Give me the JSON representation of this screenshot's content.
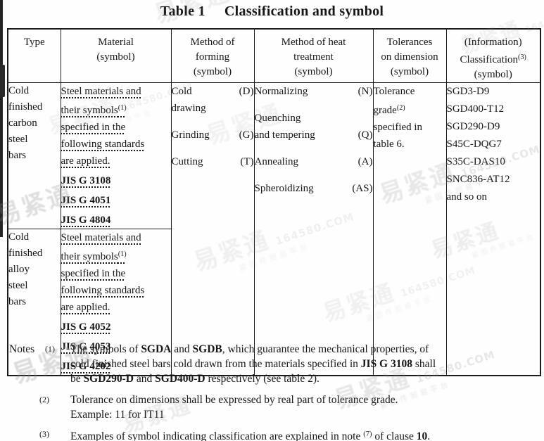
{
  "title": {
    "part1": "Table 1",
    "part2": "Classification and symbol"
  },
  "table": {
    "headers": [
      {
        "lines": [
          "Type"
        ]
      },
      {
        "lines": [
          "Material",
          "(symbol)"
        ]
      },
      {
        "lines": [
          "Method of",
          "forming",
          "(symbol)"
        ]
      },
      {
        "lines": [
          "Method of heat",
          "treatment",
          "(symbol)"
        ]
      },
      {
        "lines": [
          "Tolerances",
          "on dimension",
          "(symbol)"
        ]
      },
      {
        "lines": [
          "(Information)",
          [
            {
              "t": "Classification"
            },
            {
              "t": "(3)",
              "sup": true
            }
          ],
          "(symbol)"
        ]
      }
    ],
    "rows": [
      {
        "type_lines": [
          "Cold",
          "finished",
          "carbon",
          "steel",
          "bars"
        ],
        "material_lines": [
          "Steel materials and",
          [
            {
              "t": "their symbols"
            },
            {
              "t": "(1)",
              "sup": true
            }
          ],
          "specified in the",
          "following standards",
          "are applied."
        ],
        "standards": [
          "JIS G 3108",
          "JIS G 4051",
          "JIS G 4804"
        ]
      },
      {
        "type_lines": [
          "Cold",
          "finished",
          "alloy",
          "steel",
          "bars"
        ],
        "material_lines": [
          "Steel materials and",
          [
            {
              "t": "their symbols"
            },
            {
              "t": "(1)",
              "sup": true
            }
          ],
          "specified in the",
          "following standards",
          "are applied."
        ],
        "standards": [
          "JIS G 4052",
          "JIS G 4053",
          "JIS G 4202"
        ]
      }
    ],
    "forming_entries": [
      [
        [
          "Cold",
          "(D)"
        ],
        [
          "drawing",
          ""
        ]
      ],
      [
        [
          "Grinding",
          "(G)"
        ]
      ],
      [
        [
          "Cutting",
          "(T)"
        ]
      ]
    ],
    "heat_entries": [
      [
        [
          "Normalizing",
          "(N)"
        ]
      ],
      [
        [
          "Quenching",
          ""
        ],
        [
          "and tempering",
          "(Q)"
        ]
      ],
      [
        [
          "Annealing",
          "(A)"
        ]
      ],
      [
        [
          "Spheroidizing",
          "(AS)"
        ]
      ]
    ],
    "tolerance_lines": [
      "Tolerance",
      [
        {
          "t": "grade"
        },
        {
          "t": "(2)",
          "sup": true
        }
      ],
      "specified in",
      "table 6."
    ],
    "classification_lines": [
      "SGD3-D9",
      "SGD400-T12",
      "SGD290-D9",
      "S45C-DQG7",
      "S35C-DAS10",
      "SNC836-AT12",
      "and so on"
    ]
  },
  "notes": {
    "label": "Notes",
    "items": [
      {
        "marker": "(1)",
        "lines": [
          [
            {
              "t": "The symbols of "
            },
            {
              "t": "SGDA",
              "b": true
            },
            {
              "t": " and "
            },
            {
              "t": "SGDB",
              "b": true
            },
            {
              "t": ", which guarantee the mechanical properties, of"
            }
          ],
          [
            {
              "t": "cold finished steel bars cold drawn from the materials specified in "
            },
            {
              "t": "JIS G 3108",
              "b": true
            },
            {
              "t": " shall"
            }
          ],
          [
            {
              "t": "be "
            },
            {
              "t": "SGD290-D",
              "b": true
            },
            {
              "t": " and "
            },
            {
              "t": "SGD400-D",
              "b": true
            },
            {
              "t": " respectively (see table 2)."
            }
          ]
        ]
      },
      {
        "marker": "(2)",
        "lines": [
          [
            "Tolerance on dimensions shall be expressed by real part of tolerance grade."
          ],
          [
            "Example: 11 for IT11"
          ]
        ]
      },
      {
        "marker": "(3)",
        "lines": [
          [
            {
              "t": "Examples of symbol indicating classification are explained in note "
            },
            {
              "t": "(7)",
              "sup": true
            },
            {
              "t": " of clause "
            },
            {
              "t": "10",
              "b": true
            },
            {
              "t": "."
            }
          ]
        ]
      }
    ]
  },
  "watermark": {
    "logo": "易紧通",
    "url": "164580.COM",
    "sub": "紧固件贸易平台"
  }
}
